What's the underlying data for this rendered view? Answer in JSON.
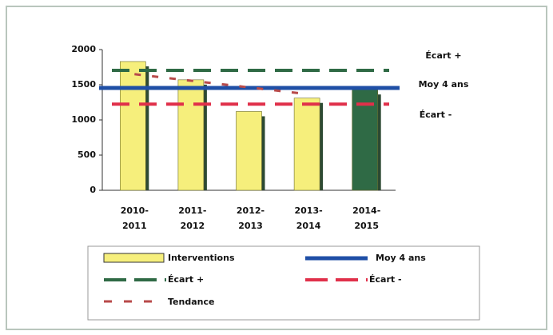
{
  "chart_data": {
    "type": "bar",
    "categories": [
      [
        "2010-",
        "2011"
      ],
      [
        "2011-",
        "2012"
      ],
      [
        "2012-",
        "2013"
      ],
      [
        "2013-",
        "2014"
      ],
      [
        "2014-",
        "2015"
      ]
    ],
    "series": [
      {
        "name": "Interventions",
        "values": [
          1830,
          1570,
          1120,
          1310,
          1430
        ],
        "colors": [
          "#f6ef7c",
          "#f6ef7c",
          "#f6ef7c",
          "#f6ef7c",
          "#2f6a45"
        ]
      }
    ],
    "lines": [
      {
        "name": "Moy 4 ans",
        "value": 1455,
        "color": "#1f4fa6",
        "style": "solid"
      },
      {
        "name": "Écart +",
        "value": 1705,
        "color": "#2f6a45",
        "style": "dashed"
      },
      {
        "name": "Écart -",
        "value": 1225,
        "color": "#e0304a",
        "style": "dashed"
      }
    ],
    "trend": {
      "name": "Tendance",
      "values": [
        1650,
        1555,
        1460,
        1365,
        null
      ],
      "color": "#b84a4a"
    },
    "ylim": [
      0,
      2000
    ],
    "yticks": [
      0,
      500,
      1000,
      1500,
      2000
    ]
  }
}
